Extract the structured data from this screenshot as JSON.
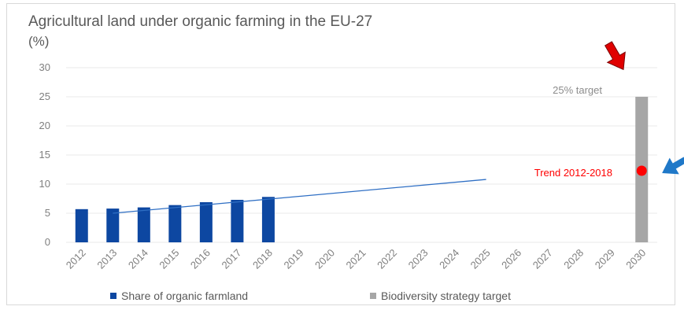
{
  "colors": {
    "organic": "#0d47a1",
    "target": "#a6a6a6",
    "trend_line": "#2f6fc4",
    "trend_dot": "#ff0000",
    "red_arrow": "#e00000",
    "blue_arrow": "#1f78c8",
    "grid": "#e8e8e8"
  },
  "icons": {
    "top_arrow": "red-down-arrow-icon",
    "side_arrow": "blue-left-arrow-icon"
  },
  "chart_data": {
    "type": "bar",
    "title": "Agricultural land under organic farming in the EU-27",
    "unit": "(%)",
    "ylim": [
      0,
      30
    ],
    "yticks": [
      "0",
      "5",
      "10",
      "15",
      "20",
      "25",
      "30"
    ],
    "grid": true,
    "legend_position": "bottom",
    "categories": [
      "2012",
      "2013",
      "2014",
      "2015",
      "2016",
      "2017",
      "2018",
      "2019",
      "2020",
      "2021",
      "2022",
      "2023",
      "2024",
      "2025",
      "2026",
      "2027",
      "2028",
      "2029",
      "2030"
    ],
    "series": [
      {
        "name": "Share of organic farmland",
        "values": [
          5.7,
          5.8,
          6.0,
          6.4,
          6.9,
          7.3,
          7.8,
          null,
          null,
          null,
          null,
          null,
          null,
          null,
          null,
          null,
          null,
          null,
          null
        ]
      },
      {
        "name": "Biodiversity strategy target",
        "values": [
          null,
          null,
          null,
          null,
          null,
          null,
          null,
          null,
          null,
          null,
          null,
          null,
          null,
          null,
          null,
          null,
          null,
          null,
          25
        ]
      }
    ],
    "trend": {
      "label": "Trend 2012-2018",
      "x": [
        "2013",
        "2025"
      ],
      "y": [
        5.0,
        10.8
      ],
      "point_2030": 12.3
    },
    "annotations": {
      "target_label": "25% target"
    }
  }
}
